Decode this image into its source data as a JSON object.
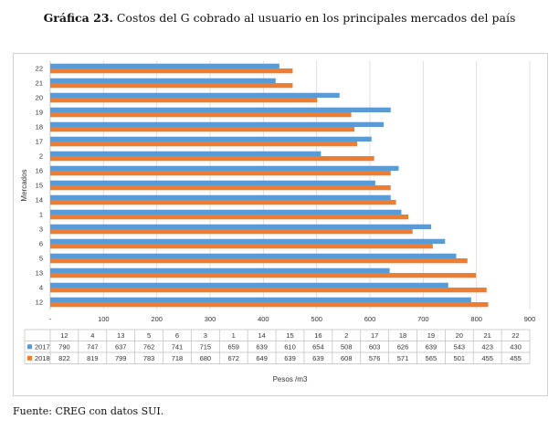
{
  "title_prefix": "Gráfica 23.",
  "title_rest": " Costos del G cobrado al usuario en los principales mercados del país",
  "source": "Fuente: CREG con datos SUI.",
  "chart_data": {
    "type": "bar",
    "orientation": "horizontal",
    "categories": [
      "12",
      "4",
      "13",
      "5",
      "6",
      "3",
      "1",
      "14",
      "15",
      "16",
      "2",
      "17",
      "18",
      "19",
      "20",
      "21",
      "22"
    ],
    "series": [
      {
        "name": "2017",
        "color": "#5B9BD5",
        "values": [
          790,
          747,
          637,
          762,
          741,
          715,
          659,
          639,
          610,
          654,
          508,
          603,
          626,
          639,
          543,
          423,
          430
        ]
      },
      {
        "name": "2018",
        "color": "#ED7D31",
        "values": [
          822,
          819,
          799,
          783,
          718,
          680,
          672,
          649,
          639,
          639,
          608,
          576,
          571,
          565,
          501,
          455,
          455
        ]
      }
    ],
    "xlabel": "Pesos /m3",
    "ylabel": "Mercados",
    "xlim": [
      0,
      900
    ],
    "x_tick_labels": [
      "-",
      "100",
      "200",
      "300",
      "400",
      "500",
      "600",
      "700",
      "800",
      "900"
    ],
    "x_tick_values": [
      0,
      100,
      200,
      300,
      400,
      500,
      600,
      700,
      800,
      900
    ],
    "gridlines": true,
    "legend": "data-table"
  }
}
